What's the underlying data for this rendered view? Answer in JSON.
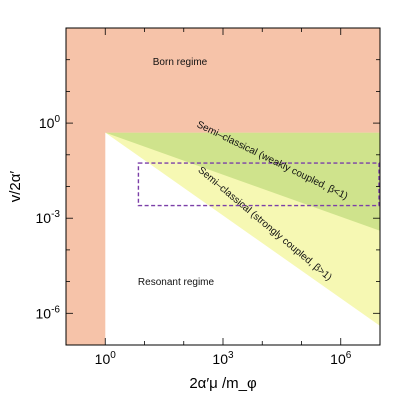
{
  "chart_data": {
    "type": "area",
    "xlabel": "2α′μ /m_φ",
    "ylabel": "v/2α′",
    "x_scale": "log",
    "y_scale": "log",
    "xlim": [
      0.1,
      10000000
    ],
    "ylim": [
      1e-07,
      1000
    ],
    "x_ticks": [
      {
        "value": 1,
        "base": "10",
        "exp": "0"
      },
      {
        "value": 1000,
        "base": "10",
        "exp": "3"
      },
      {
        "value": 1000000,
        "base": "10",
        "exp": "6"
      }
    ],
    "y_ticks": [
      {
        "value": 1,
        "base": "10",
        "exp": "0"
      },
      {
        "value": 0.001,
        "base": "10",
        "exp": "-3"
      },
      {
        "value": 1e-06,
        "base": "10",
        "exp": "-6"
      }
    ],
    "regions": [
      {
        "name": "Born regime",
        "color": "#f6c3a9"
      },
      {
        "name": "Semi-classical (strongly coupled, β>1)",
        "color": "#f6f8b3"
      },
      {
        "name": "Semi-classical (weakly coupled, β<1)",
        "color": "#cfe38c"
      },
      {
        "name": "Resonant regime",
        "color": "#ffffff"
      }
    ],
    "born_boundary": {
      "x_max": 1,
      "y_min": 0.5
    },
    "strong_lower_line": [
      [
        1,
        0.5
      ],
      [
        10000000,
        4e-07
      ]
    ],
    "weak_lower_line": [
      [
        1,
        0.5
      ],
      [
        10000000,
        0.0004
      ]
    ],
    "highlight_box": {
      "x": [
        7,
        10000000
      ],
      "y": [
        0.0025,
        0.055
      ],
      "color": "#7b3fa8"
    },
    "labels": {
      "born": "Born regime",
      "resonant": "Resonant regime",
      "weak": "Semi–classical (weakly coupled, β<1)",
      "strong": "Semi–classical (strongly coupled, β>1)"
    }
  }
}
